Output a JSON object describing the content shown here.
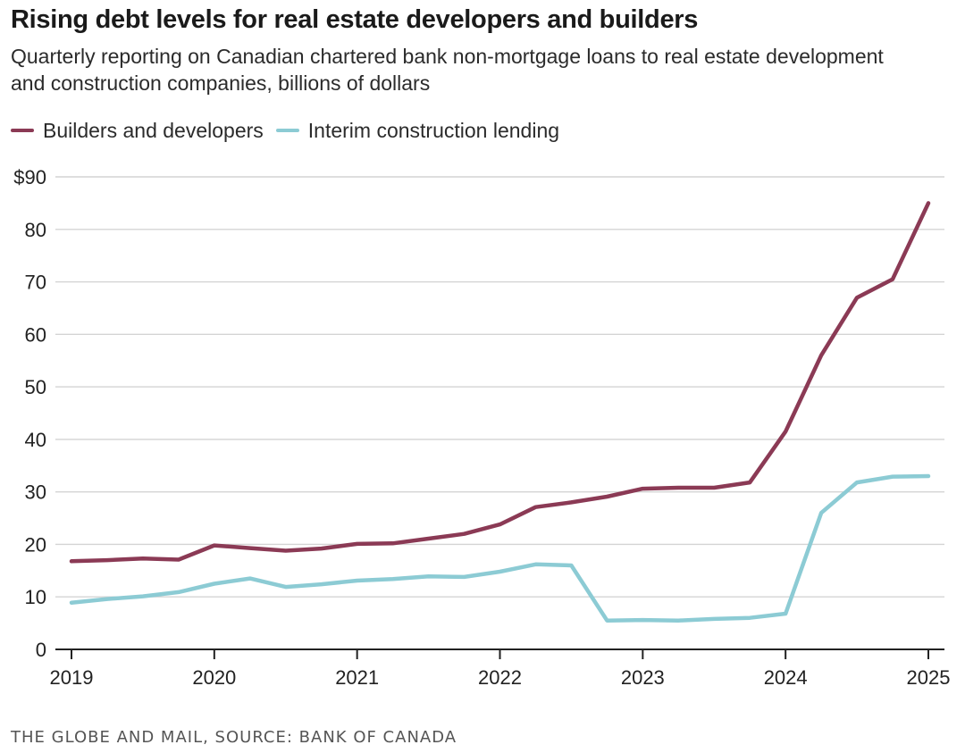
{
  "title": "Rising debt levels for real estate developers and builders",
  "subtitle": "Quarterly reporting on Canadian chartered bank non-mortgage loans to real estate development and construction companies, billions of dollars",
  "source": "THE GLOBE AND MAIL, SOURCE: BANK OF CANADA",
  "colors": {
    "builders": "#8b3a55",
    "interim": "#8ccbd4",
    "grid": "#d4d4d4",
    "axis": "#222222"
  },
  "chart_data": {
    "type": "line",
    "title": "Rising debt levels for real estate developers and builders",
    "subtitle": "Quarterly reporting on Canadian chartered bank non-mortgage loans to real estate development and construction companies, billions of dollars",
    "xlabel": "",
    "ylabel": "",
    "xlim": [
      2019,
      2025
    ],
    "ylim": [
      0,
      90
    ],
    "x_ticks": [
      "2019",
      "2020",
      "2021",
      "2022",
      "2023",
      "2024",
      "2025"
    ],
    "y_ticks": [
      "0",
      "10",
      "20",
      "30",
      "40",
      "50",
      "60",
      "70",
      "80",
      "$90"
    ],
    "grid": "horizontal",
    "legend_position": "top-left",
    "x": [
      "2019 Q1",
      "2019 Q2",
      "2019 Q3",
      "2019 Q4",
      "2020 Q1",
      "2020 Q2",
      "2020 Q3",
      "2020 Q4",
      "2021 Q1",
      "2021 Q2",
      "2021 Q3",
      "2021 Q4",
      "2022 Q1",
      "2022 Q2",
      "2022 Q3",
      "2022 Q4",
      "2023 Q1",
      "2023 Q2",
      "2023 Q3",
      "2023 Q4",
      "2024 Q1",
      "2024 Q2",
      "2024 Q3",
      "2024 Q4",
      "2025 Q1"
    ],
    "series": [
      {
        "name": "Builders and developers",
        "color": "#8b3a55",
        "values": [
          16.8,
          17.0,
          17.3,
          17.1,
          19.8,
          19.3,
          18.8,
          19.2,
          20.1,
          20.2,
          21.1,
          22.0,
          23.8,
          27.1,
          28.0,
          29.1,
          30.6,
          30.8,
          30.8,
          31.8,
          41.5,
          56.0,
          67.0,
          70.5,
          85.0
        ]
      },
      {
        "name": "Interim construction lending",
        "color": "#8ccbd4",
        "values": [
          8.9,
          9.6,
          10.1,
          10.9,
          12.5,
          13.5,
          11.9,
          12.4,
          13.1,
          13.4,
          13.9,
          13.8,
          14.8,
          16.2,
          16.0,
          5.5,
          5.6,
          5.5,
          5.8,
          6.0,
          6.8,
          26.0,
          31.8,
          32.9,
          33.0
        ]
      }
    ]
  }
}
